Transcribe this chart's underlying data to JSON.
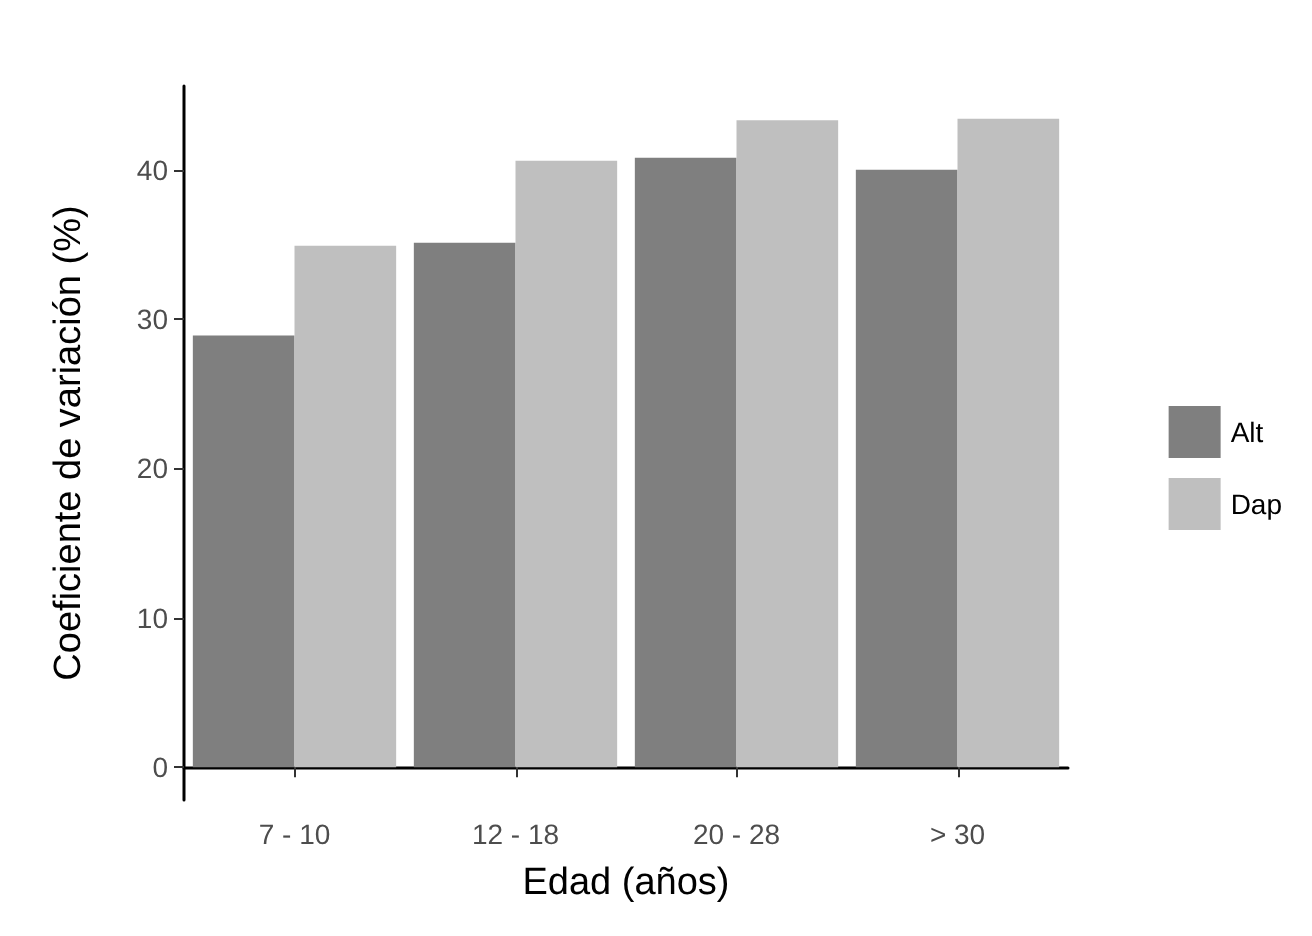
{
  "chart_data": {
    "type": "bar",
    "xlabel": "Edad (años)",
    "ylabel": "Coeficiente de variación (%)",
    "categories": [
      "7 - 10",
      "12 - 18",
      "20 - 28",
      "> 30"
    ],
    "series": [
      {
        "name": "Alt",
        "color": "#7f7f7f",
        "values": [
          28.9,
          35.1,
          40.8,
          40.0
        ]
      },
      {
        "name": "Dap",
        "color": "#bfbfbf",
        "values": [
          34.9,
          40.6,
          43.3,
          43.4
        ]
      }
    ],
    "ylim": [
      -2.2,
      45.6
    ],
    "yticks": [
      0,
      10,
      20,
      30,
      40
    ],
    "grid": false,
    "legend": "right"
  }
}
